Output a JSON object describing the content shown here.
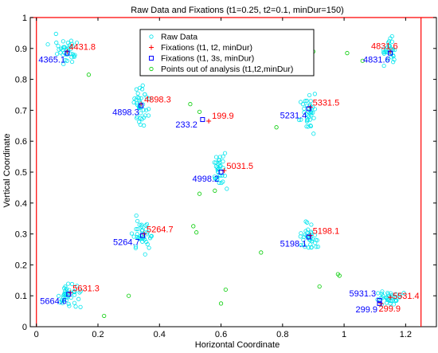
{
  "chart_data": {
    "type": "scatter",
    "title": "Raw Data and Fixations  (t1=0.25, t2=0.1, minDur=150)",
    "xlabel": "Horizontal Coordinate",
    "ylabel": "Vertical Coordinate",
    "xlim": [
      -0.02,
      1.3
    ],
    "ylim": [
      0,
      1
    ],
    "xticks": [
      0,
      0.2,
      0.4,
      0.6,
      0.8,
      1,
      1.2
    ],
    "xtick_labels": [
      "0",
      "0.2",
      "0.4",
      "0.6",
      "0.8",
      "1",
      "1.2"
    ],
    "yticks": [
      0,
      0.1,
      0.2,
      0.3,
      0.4,
      0.5,
      0.6,
      0.7,
      0.8,
      0.9,
      1
    ],
    "ytick_labels": [
      "0",
      "0.1",
      "0.2",
      "0.3",
      "0.4",
      "0.5",
      "0.6",
      "0.7",
      "0.8",
      "0.9",
      "1"
    ],
    "grid": false,
    "legend_position": "top-center",
    "colors": {
      "raw": "#00e5ee",
      "red": "#ff0000",
      "blue": "#0000ff",
      "green": "#00cc00"
    },
    "boundary_lines": {
      "x": [
        0,
        1.25
      ],
      "y": [
        1
      ]
    },
    "series": [
      {
        "name": "Raw Data",
        "marker": "circle",
        "color": "#00e5ee",
        "points": []
      },
      {
        "name": "Fixations (t1, t2, minDur)",
        "marker": "plus",
        "color": "#ff0000",
        "points": [
          {
            "x": 0.1,
            "y": 0.89,
            "label": "4431.8"
          },
          {
            "x": 0.34,
            "y": 0.72,
            "label": "4898.3"
          },
          {
            "x": 0.56,
            "y": 0.665,
            "label": "199.9"
          },
          {
            "x": 0.89,
            "y": 0.71,
            "label": "5331.5"
          },
          {
            "x": 1.15,
            "y": 0.89,
            "label": "4831.6"
          },
          {
            "x": 0.61,
            "y": 0.505,
            "label": "5031.5"
          },
          {
            "x": 0.35,
            "y": 0.3,
            "label": "5264.7"
          },
          {
            "x": 0.89,
            "y": 0.295,
            "label": "5198.1"
          },
          {
            "x": 0.11,
            "y": 0.11,
            "label": "5631.3"
          },
          {
            "x": 1.15,
            "y": 0.095,
            "label": "5531.4"
          },
          {
            "x": 1.12,
            "y": 0.075,
            "label": "299.9"
          }
        ]
      },
      {
        "name": "Fixations (t1, 3s, minDur)",
        "marker": "square",
        "color": "#0000ff",
        "points": [
          {
            "x": 0.1,
            "y": 0.885,
            "label": "4365.1"
          },
          {
            "x": 0.34,
            "y": 0.715,
            "label": "4898.3"
          },
          {
            "x": 0.54,
            "y": 0.67,
            "label": "233.2"
          },
          {
            "x": 0.885,
            "y": 0.705,
            "label": "5231.4"
          },
          {
            "x": 1.15,
            "y": 0.885,
            "label": "4831.6"
          },
          {
            "x": 0.6,
            "y": 0.5,
            "label": "4998.2"
          },
          {
            "x": 0.345,
            "y": 0.295,
            "label": "5264.7"
          },
          {
            "x": 0.885,
            "y": 0.29,
            "label": "5198.1"
          },
          {
            "x": 0.105,
            "y": 0.105,
            "label": "5664.6"
          },
          {
            "x": 1.115,
            "y": 0.085,
            "label": "5931.3"
          },
          {
            "x": 1.115,
            "y": 0.075,
            "label": "299.9"
          }
        ]
      },
      {
        "name": "Points out of analysis (t1,t2,minDur)",
        "marker": "circle",
        "color": "#00cc00",
        "points": [
          {
            "x": 0.17,
            "y": 0.815
          },
          {
            "x": 0.5,
            "y": 0.72
          },
          {
            "x": 0.53,
            "y": 0.695
          },
          {
            "x": 0.78,
            "y": 0.645
          },
          {
            "x": 0.9,
            "y": 0.89
          },
          {
            "x": 1.01,
            "y": 0.885
          },
          {
            "x": 1.06,
            "y": 0.86
          },
          {
            "x": 0.53,
            "y": 0.43
          },
          {
            "x": 0.58,
            "y": 0.44
          },
          {
            "x": 0.51,
            "y": 0.325
          },
          {
            "x": 0.52,
            "y": 0.305
          },
          {
            "x": 0.73,
            "y": 0.24
          },
          {
            "x": 0.98,
            "y": 0.17
          },
          {
            "x": 0.985,
            "y": 0.165
          },
          {
            "x": 0.6,
            "y": 0.075
          },
          {
            "x": 0.615,
            "y": 0.12
          },
          {
            "x": 0.3,
            "y": 0.1
          },
          {
            "x": 0.22,
            "y": 0.035
          },
          {
            "x": 0.92,
            "y": 0.13
          }
        ]
      }
    ],
    "raw_clusters": [
      {
        "cx": 0.095,
        "cy": 0.89,
        "sx": 0.022,
        "sy": 0.025,
        "n": 38
      },
      {
        "cx": 0.34,
        "cy": 0.715,
        "sx": 0.012,
        "sy": 0.03,
        "n": 38
      },
      {
        "cx": 0.885,
        "cy": 0.7,
        "sx": 0.012,
        "sy": 0.03,
        "n": 36
      },
      {
        "cx": 1.145,
        "cy": 0.89,
        "sx": 0.014,
        "sy": 0.02,
        "n": 30
      },
      {
        "cx": 0.6,
        "cy": 0.5,
        "sx": 0.012,
        "sy": 0.025,
        "n": 34
      },
      {
        "cx": 0.345,
        "cy": 0.295,
        "sx": 0.014,
        "sy": 0.025,
        "n": 38
      },
      {
        "cx": 0.885,
        "cy": 0.29,
        "sx": 0.018,
        "sy": 0.022,
        "n": 36
      },
      {
        "cx": 0.105,
        "cy": 0.1,
        "sx": 0.018,
        "sy": 0.018,
        "n": 40
      },
      {
        "cx": 1.14,
        "cy": 0.09,
        "sx": 0.022,
        "sy": 0.012,
        "n": 34
      }
    ]
  }
}
